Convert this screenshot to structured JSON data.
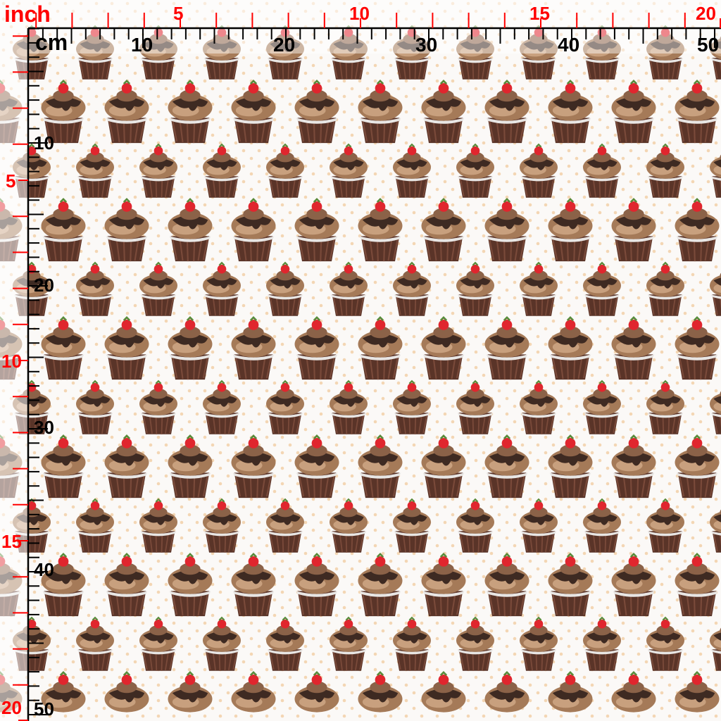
{
  "pattern": {
    "motif": "cupcake-with-strawberry",
    "background_color": "#fbf9f7",
    "dot_color": "#f3d6b4",
    "frosting_color": "#a57a58",
    "chocolate_color": "#3e2a22",
    "wrapper_color": "#5a3428",
    "strawberry_color": "#e0262e"
  },
  "ruler": {
    "inch_unit": "inch",
    "cm_unit": "cm",
    "inch_color": "#ff0000",
    "cm_color": "#000000",
    "inch_labels": [
      "5",
      "10",
      "15",
      "20"
    ],
    "cm_labels": [
      "10",
      "20",
      "30",
      "40",
      "50"
    ],
    "left_inch_labels": [
      "5",
      "10",
      "15",
      "20"
    ],
    "left_cm_labels": [
      "10",
      "20",
      "30",
      "40",
      "50"
    ]
  }
}
